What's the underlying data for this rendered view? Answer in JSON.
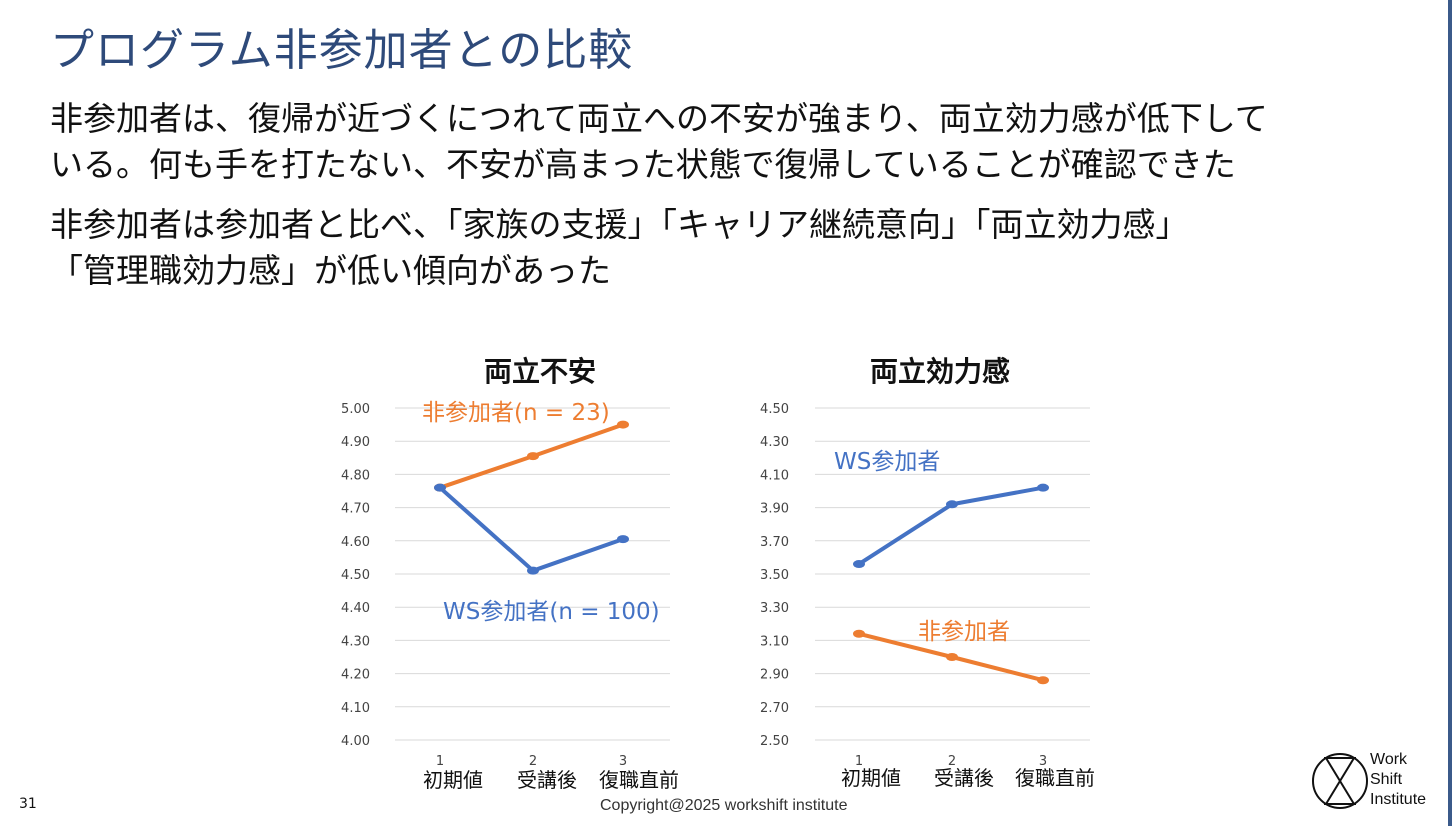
{
  "slide": {
    "title": "プログラム非参加者との比較",
    "paragraph1": [
      "非参加者は、復帰が近づくにつれて両立への不安が強まり、両立効力感が低下して",
      "いる。何も手を打たない、不安が高まった状態で復帰していることが確認できた"
    ],
    "paragraph2": [
      "非参加者は参加者と比べ、「家族の支援」「キャリア継続意向」「両立効力感」",
      "「管理職効力感」が低い傾向があった"
    ],
    "page_number": "31",
    "copyright": "Copyright@2025 workshift institute",
    "logo_lines": [
      "Work",
      "Shift",
      "Institute"
    ]
  },
  "colors": {
    "title": "#2e4a7a",
    "orange": "#ed7d31",
    "blue": "#4472c4",
    "grid": "#d9d9d9"
  },
  "chart_data": [
    {
      "type": "line",
      "title": "両立不安",
      "x": [
        1,
        2,
        3
      ],
      "x_tick_labels": [
        "1",
        "2",
        "3"
      ],
      "categories": [
        "初期値",
        "受講後",
        "復職直前"
      ],
      "ylim": [
        4.0,
        5.0
      ],
      "y_ticks": [
        "4.00",
        "4.10",
        "4.20",
        "4.30",
        "4.40",
        "4.50",
        "4.60",
        "4.70",
        "4.80",
        "4.90",
        "5.00"
      ],
      "grid": true,
      "series": [
        {
          "name": "非参加者(n = 23)",
          "color": "#ed7d31",
          "values": [
            4.76,
            4.855,
            4.95
          ]
        },
        {
          "name": "WS参加者(n = 100)",
          "color": "#4472c4",
          "values": [
            4.76,
            4.51,
            4.605
          ]
        }
      ]
    },
    {
      "type": "line",
      "title": "両立効力感",
      "x": [
        1,
        2,
        3
      ],
      "x_tick_labels": [
        "1",
        "2",
        "3"
      ],
      "categories": [
        "初期値",
        "受講後",
        "復職直前"
      ],
      "ylim": [
        2.5,
        4.5
      ],
      "y_ticks": [
        "2.50",
        "2.70",
        "2.90",
        "3.10",
        "3.30",
        "3.50",
        "3.70",
        "3.90",
        "4.10",
        "4.30",
        "4.50"
      ],
      "grid": true,
      "series": [
        {
          "name": "WS参加者",
          "color": "#4472c4",
          "values": [
            3.56,
            3.92,
            4.02
          ]
        },
        {
          "name": "非参加者",
          "color": "#ed7d31",
          "values": [
            3.14,
            3.0,
            2.86
          ]
        }
      ]
    }
  ]
}
